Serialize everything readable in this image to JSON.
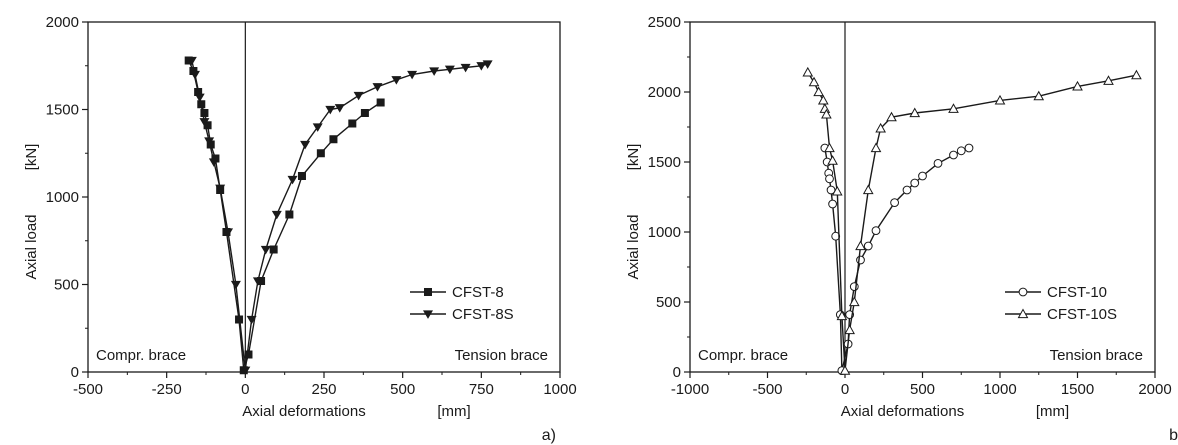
{
  "chart_data": [
    {
      "type": "line",
      "panel_label": "a)",
      "xlabel": "Axial deformations",
      "xunit": "[mm]",
      "ylabel": "Axial load",
      "yunit": "[kN]",
      "xlim": [
        -500,
        1000
      ],
      "ylim": [
        0,
        2000
      ],
      "xticks": [
        "-500",
        "-250",
        "0",
        "250",
        "500",
        "750",
        "1000"
      ],
      "yticks": [
        "0",
        "500",
        "1000",
        "1500",
        "2000"
      ],
      "grid": false,
      "legend": "bottom-right",
      "annotations": {
        "left": "Compr. brace",
        "right": "Tension brace"
      },
      "series": [
        {
          "name": "CFST-8",
          "marker": "square-filled",
          "x": [
            -180,
            -165,
            -150,
            -140,
            -130,
            -120,
            -110,
            -95,
            -80,
            -60,
            -20,
            -5,
            10,
            50,
            90,
            140,
            180,
            240,
            280,
            340,
            380,
            430
          ],
          "y": [
            1780,
            1720,
            1600,
            1530,
            1480,
            1410,
            1300,
            1220,
            1040,
            800,
            300,
            10,
            100,
            520,
            700,
            900,
            1120,
            1250,
            1330,
            1420,
            1480,
            1540
          ]
        },
        {
          "name": "CFST-8S",
          "marker": "triangle-down-filled",
          "x": [
            -170,
            -160,
            -145,
            -130,
            -115,
            -100,
            -80,
            -55,
            -30,
            0,
            20,
            40,
            65,
            100,
            150,
            190,
            230,
            270,
            300,
            360,
            420,
            480,
            530,
            600,
            650,
            700,
            750,
            770
          ],
          "y": [
            1780,
            1700,
            1570,
            1430,
            1320,
            1200,
            1050,
            800,
            500,
            10,
            300,
            520,
            700,
            900,
            1100,
            1300,
            1400,
            1500,
            1510,
            1580,
            1630,
            1670,
            1700,
            1720,
            1730,
            1740,
            1750,
            1760
          ]
        }
      ]
    },
    {
      "type": "line",
      "panel_label": "b",
      "xlabel": "Axial deformations",
      "xunit": "[mm]",
      "ylabel": "Axial load",
      "yunit": "[kN]",
      "xlim": [
        -1000,
        2000
      ],
      "ylim": [
        0,
        2500
      ],
      "xticks": [
        "-1000",
        "-500",
        "0",
        "500",
        "1000",
        "1500",
        "2000"
      ],
      "yticks": [
        "0",
        "500",
        "1000",
        "1500",
        "2000",
        "2500"
      ],
      "grid": false,
      "legend": "bottom-right",
      "annotations": {
        "left": "Compr. brace",
        "right": "Tension brace"
      },
      "series": [
        {
          "name": "CFST-10",
          "marker": "circle-open",
          "x": [
            -130,
            -115,
            -105,
            -100,
            -90,
            -80,
            -60,
            -30,
            -20,
            20,
            30,
            60,
            100,
            150,
            200,
            320,
            400,
            450,
            500,
            600,
            700,
            750,
            800
          ],
          "y": [
            1600,
            1500,
            1420,
            1380,
            1300,
            1200,
            970,
            410,
            10,
            200,
            410,
            610,
            800,
            900,
            1010,
            1210,
            1300,
            1350,
            1400,
            1490,
            1550,
            1580,
            1600
          ]
        },
        {
          "name": "CFST-10S",
          "marker": "triangle-up-open",
          "x": [
            -240,
            -200,
            -170,
            -140,
            -130,
            -120,
            -100,
            -80,
            -50,
            -20,
            0,
            30,
            60,
            100,
            150,
            200,
            230,
            300,
            450,
            700,
            1000,
            1250,
            1500,
            1700,
            1880
          ],
          "y": [
            2140,
            2070,
            2000,
            1940,
            1880,
            1840,
            1600,
            1510,
            1290,
            400,
            10,
            300,
            500,
            900,
            1300,
            1600,
            1740,
            1820,
            1850,
            1880,
            1940,
            1970,
            2040,
            2080,
            2120
          ]
        }
      ]
    }
  ]
}
